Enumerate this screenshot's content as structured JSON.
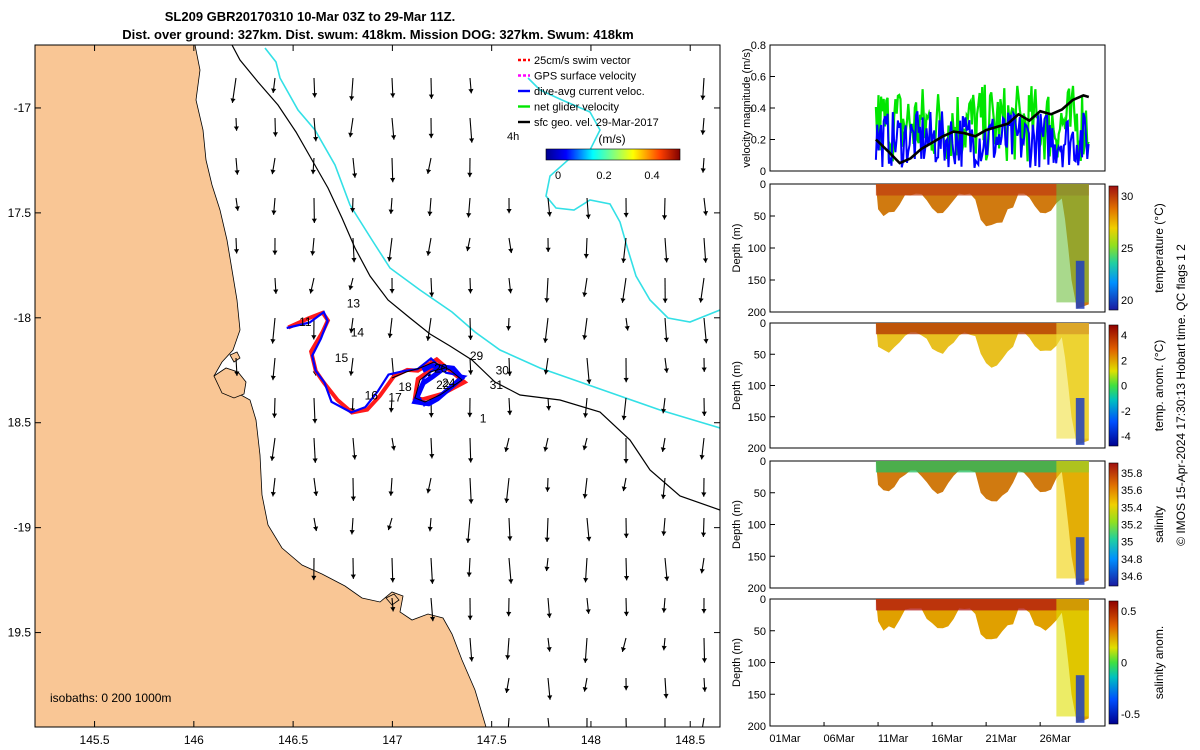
{
  "title_line1": "SL209 GBR20170310 10-Mar 03Z to 29-Mar 11Z.",
  "title_line2": "Dist. over ground: 327km. Dist. swum: 418km. Mission DOG: 327km. Swum: 418km",
  "isobaths_label": "isobaths: 0   200  1000m",
  "credit": "© IMOS 15-Apr-2024 17:30:13 Hobart time. QC flags 1  2",
  "colors": {
    "land": "#f9c695",
    "cyan": "#33e0e6",
    "red": "#ff1a1a",
    "blue": "#0000ff",
    "green": "#00e600",
    "black": "#000000"
  },
  "legend": {
    "items": [
      {
        "label": "25cm/s swim vector",
        "color": "#ff0000"
      },
      {
        "label": "GPS surface velocity",
        "color": "#ff00ff"
      },
      {
        "label": "dive-avg current veloc.",
        "color": "#0000ff"
      },
      {
        "label": "net glider velocity",
        "color": "#00e600"
      },
      {
        "label": "sfc geo. vel. 29-Mar-2017",
        "color": "#000000"
      }
    ],
    "time_label": "4h",
    "colorbar_title": "(m/s)",
    "colorbar_ticks": [
      "0",
      "0.2",
      "0.4"
    ]
  },
  "chart_data": [
    {
      "type": "map",
      "xlim": [
        145.2,
        148.65
      ],
      "ylim": [
        -19.95,
        -16.7
      ],
      "x_ticks": [
        145.5,
        146,
        146.5,
        147,
        147.5,
        148,
        148.5
      ],
      "x_tick_labels": [
        "145.5",
        "146",
        "146.5",
        "147",
        "147.5",
        "148",
        "148.5"
      ],
      "y_ticks": [
        -17,
        -17.5,
        -18,
        -18.5,
        -19,
        -19.5
      ],
      "y_tick_labels": [
        "-17",
        "17.5",
        "-18",
        "18.5",
        "-19",
        "19.5"
      ],
      "track_day_labels": [
        {
          "day": "1",
          "lon": 147.44,
          "lat": -18.5
        },
        {
          "day": "11",
          "lon": 146.53,
          "lat": -18.04
        },
        {
          "day": "13",
          "lon": 146.77,
          "lat": -17.95
        },
        {
          "day": "14",
          "lon": 146.79,
          "lat": -18.09
        },
        {
          "day": "15",
          "lon": 146.71,
          "lat": -18.21
        },
        {
          "day": "16",
          "lon": 146.86,
          "lat": -18.39
        },
        {
          "day": "17",
          "lon": 146.98,
          "lat": -18.4
        },
        {
          "day": "18",
          "lon": 147.03,
          "lat": -18.35
        },
        {
          "day": "20",
          "lon": 147.21,
          "lat": -18.26
        },
        {
          "day": "22",
          "lon": 147.22,
          "lat": -18.34
        },
        {
          "day": "24",
          "lon": 147.25,
          "lat": -18.33
        },
        {
          "day": "29",
          "lon": 147.39,
          "lat": -18.2
        },
        {
          "day": "30",
          "lon": 147.52,
          "lat": -18.27
        },
        {
          "day": "31",
          "lon": 147.49,
          "lat": -18.34
        }
      ]
    },
    {
      "type": "line",
      "title": "velocity magnitude",
      "ylabel": "velocity magnitude (m/s)",
      "ylim": [
        0,
        0.8
      ],
      "y_ticks": [
        "0",
        "0.2",
        "0.4",
        "0.6",
        "0.8"
      ],
      "x_time_range_days": [
        0,
        31
      ],
      "series": [
        {
          "name": "net glider velocity",
          "color": "#00e600",
          "start_day": 9.8,
          "end_day": 29.5,
          "approx_range": [
            0.05,
            0.55
          ]
        },
        {
          "name": "dive-avg current veloc.",
          "color": "#0000ff",
          "start_day": 9.8,
          "end_day": 29.5,
          "approx_range": [
            0.02,
            0.45
          ]
        },
        {
          "name": "sfc speed",
          "color": "#000000",
          "x": [
            9.8,
            11,
            12,
            13,
            14,
            15,
            16,
            17,
            18,
            19,
            20,
            21,
            22,
            23,
            24,
            25,
            26,
            27,
            28,
            29,
            29.5
          ],
          "y": [
            0.2,
            0.12,
            0.05,
            0.08,
            0.14,
            0.18,
            0.22,
            0.25,
            0.24,
            0.22,
            0.26,
            0.28,
            0.3,
            0.36,
            0.32,
            0.38,
            0.36,
            0.39,
            0.45,
            0.48,
            0.47
          ]
        }
      ]
    },
    {
      "type": "heatmap",
      "variable": "temperature",
      "cbar_label": "temperature (°C)",
      "cbar_ticks": [
        "30",
        "25",
        "20"
      ],
      "ylabel": "Depth (m)",
      "y_ticks": [
        "0",
        "50",
        "100",
        "150",
        "200"
      ]
    },
    {
      "type": "heatmap",
      "variable": "temp. anom.",
      "cbar_label": "temp. anom. (°C)",
      "cbar_ticks": [
        "4",
        "2",
        "0",
        "-2",
        "-4"
      ],
      "ylabel": "Depth (m)",
      "y_ticks": [
        "0",
        "50",
        "100",
        "150",
        "200"
      ]
    },
    {
      "type": "heatmap",
      "variable": "salinity",
      "cbar_label": "salinity",
      "cbar_ticks": [
        "35.8",
        "35.6",
        "35.4",
        "35.2",
        "35",
        "34.8",
        "34.6"
      ],
      "ylabel": "Depth (m)",
      "y_ticks": [
        "0",
        "50",
        "100",
        "150",
        "200"
      ]
    },
    {
      "type": "heatmap",
      "variable": "salinity anom.",
      "cbar_label": "salinity anom.",
      "cbar_ticks": [
        "0.5",
        "0",
        "-0.5"
      ],
      "ylabel": "Depth (m)",
      "y_ticks": [
        "0",
        "50",
        "100",
        "150",
        "200"
      ],
      "x_tick_labels": [
        "01Mar",
        "06Mar",
        "11Mar",
        "16Mar",
        "21Mar",
        "26Mar"
      ]
    }
  ]
}
